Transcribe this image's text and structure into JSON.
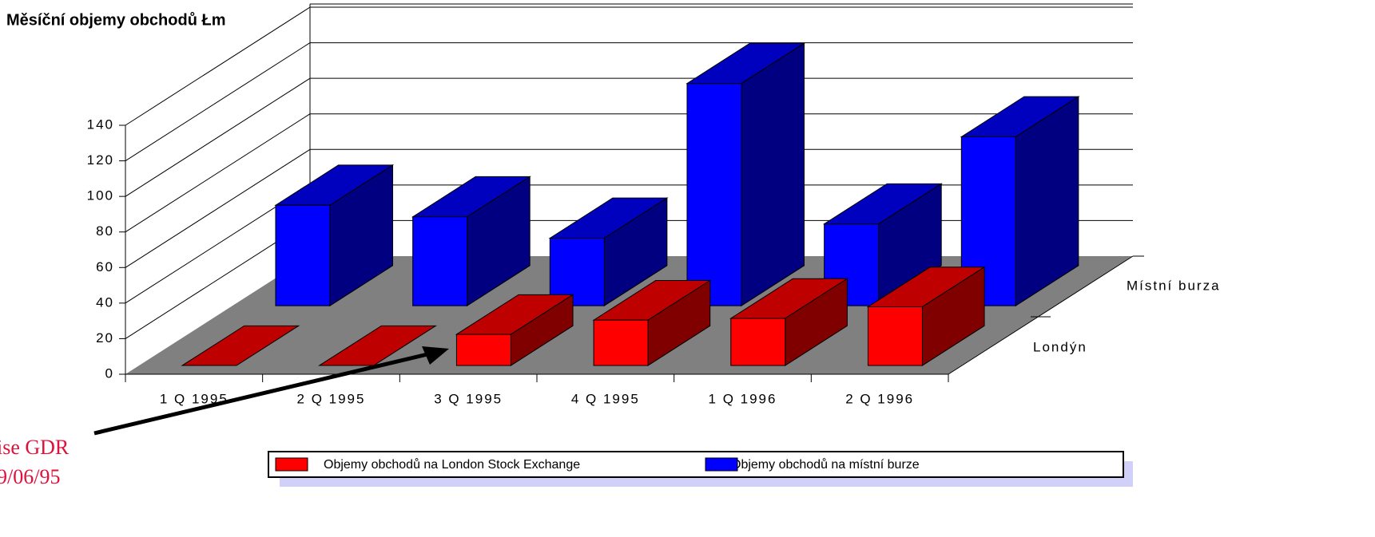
{
  "chart_data": {
    "type": "bar3d",
    "title": "Měsíční objemy obchodů Łm",
    "categories": [
      "1 Q 1995",
      "2 Q 1995",
      "3 Q 1995",
      "4 Q 1995",
      "1 Q 1996",
      "2 Q 1996"
    ],
    "depth_categories": [
      "Londýn",
      "Místní burza"
    ],
    "series": [
      {
        "name": "Objemy obchodů na London Stock Exchange",
        "color": "#ff0000",
        "values": [
          0,
          0,
          17.5,
          25.5,
          26.5,
          33
        ]
      },
      {
        "name": "Objemy obchodů na místní burze",
        "color": "#0000ff",
        "values": [
          56.5,
          50,
          38,
          125,
          46,
          95
        ]
      }
    ],
    "ylim": [
      0,
      140
    ],
    "yticks": [
      0,
      20,
      40,
      60,
      80,
      100,
      120,
      140
    ],
    "grid": true,
    "annotation": [
      "ise GDR",
      "9/06/95"
    ]
  }
}
